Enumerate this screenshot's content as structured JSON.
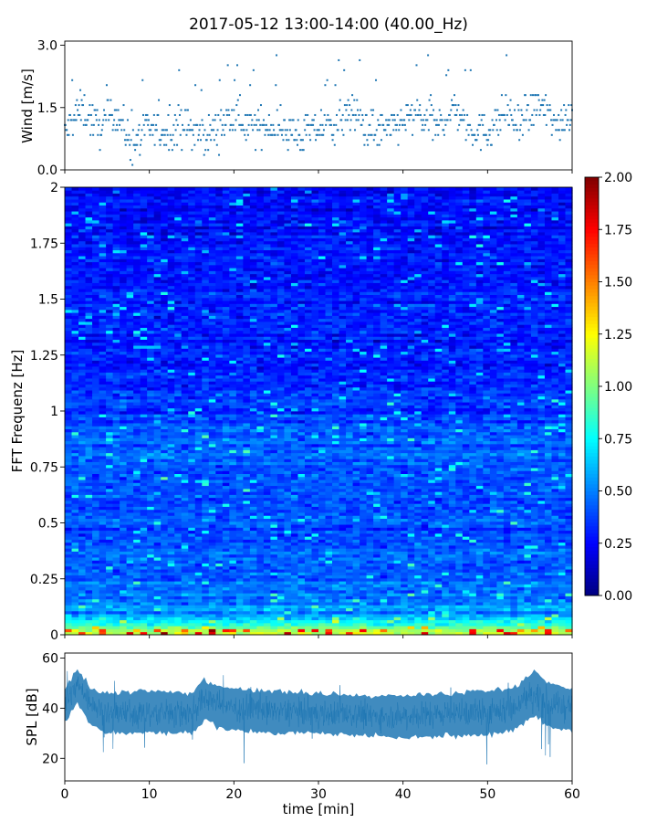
{
  "chart_data": [
    {
      "type": "scatter",
      "panel": "wind",
      "title": "2017-05-12 13:00-14:00 (40.00_Hz)",
      "ylabel": "Wind [m/s]",
      "ylim": [
        0,
        3.1
      ],
      "xlim": [
        0,
        60
      ],
      "yticks": [
        0.0,
        1.5,
        3.0
      ],
      "ytick_labels": [
        "0.0",
        "1.5",
        "3.0"
      ],
      "color": "#1f77b4",
      "series": [
        {
          "x": [
            0,
            2,
            4,
            6,
            8,
            10,
            12,
            14,
            16,
            18,
            20,
            22,
            24,
            26,
            28,
            30,
            32,
            34,
            36,
            38,
            40,
            42,
            44,
            46,
            48,
            50,
            52,
            54,
            56,
            58,
            60
          ],
          "y": [
            0.9,
            1.5,
            1.0,
            1.4,
            0.6,
            1.0,
            0.9,
            1.1,
            0.8,
            1.0,
            1.3,
            1.0,
            1.1,
            1.0,
            0.8,
            1.0,
            1.1,
            1.4,
            1.0,
            0.9,
            1.2,
            1.3,
            1.0,
            1.5,
            1.0,
            0.9,
            1.4,
            1.0,
            1.6,
            1.1,
            1.4
          ]
        }
      ]
    },
    {
      "type": "heatmap",
      "panel": "spectrogram",
      "ylabel": "FFT Frequenz [Hz]",
      "xlim": [
        0,
        60
      ],
      "ylim": [
        0,
        2
      ],
      "yticks": [
        0,
        0.25,
        0.5,
        0.75,
        1,
        1.25,
        1.5,
        1.75,
        2
      ],
      "ytick_labels": [
        "0",
        "0.25",
        "0.5",
        "0.75",
        "1",
        "1.25",
        "1.5",
        "1.75",
        "2"
      ],
      "colormap": "jet",
      "colorbar": {
        "vmin": 0,
        "vmax": 2,
        "ticks": [
          0.0,
          0.25,
          0.5,
          0.75,
          1.0,
          1.25,
          1.5,
          1.75,
          2.0
        ],
        "tick_labels": [
          "0.00",
          "0.25",
          "0.50",
          "0.75",
          "1.00",
          "1.25",
          "1.50",
          "1.75",
          "2.00"
        ]
      },
      "mean_amplitude_profile": {
        "freq": [
          0,
          0.05,
          0.1,
          0.25,
          0.5,
          0.75,
          0.85,
          1.0,
          1.25,
          1.5,
          1.75,
          2.0
        ],
        "value": [
          1.2,
          0.8,
          0.55,
          0.45,
          0.4,
          0.42,
          0.45,
          0.35,
          0.32,
          0.3,
          0.28,
          0.25
        ]
      }
    },
    {
      "type": "area",
      "panel": "spl",
      "ylabel": "SPL [dB]",
      "xlabel": "time [min]",
      "xlim": [
        0,
        60
      ],
      "ylim": [
        11,
        62
      ],
      "xticks": [
        0,
        10,
        20,
        30,
        40,
        50,
        60
      ],
      "xtick_labels": [
        "0",
        "10",
        "20",
        "30",
        "40",
        "50",
        "60"
      ],
      "yticks": [
        20,
        40,
        60
      ],
      "ytick_labels": [
        "20",
        "40",
        "60"
      ],
      "color": "#1f77b4",
      "series": [
        {
          "x": [
            0,
            1.5,
            3,
            5,
            10,
            15,
            16.5,
            18,
            20,
            25,
            30,
            35,
            40,
            45,
            50,
            53,
            55.5,
            57,
            60
          ],
          "y_low": [
            34,
            42,
            34,
            30,
            30,
            30,
            35,
            33,
            31,
            30,
            30,
            29,
            28,
            29,
            29,
            31,
            37,
            33,
            31
          ],
          "y_mean": [
            41,
            50,
            42,
            38,
            38,
            38,
            44,
            42,
            40,
            39,
            38,
            37,
            37,
            38,
            38,
            40,
            46,
            42,
            40
          ],
          "y_high": [
            47,
            56,
            48,
            46,
            47,
            46,
            51,
            49,
            48,
            47,
            46,
            45,
            45,
            46,
            47,
            48,
            55,
            50,
            48
          ]
        }
      ]
    }
  ]
}
